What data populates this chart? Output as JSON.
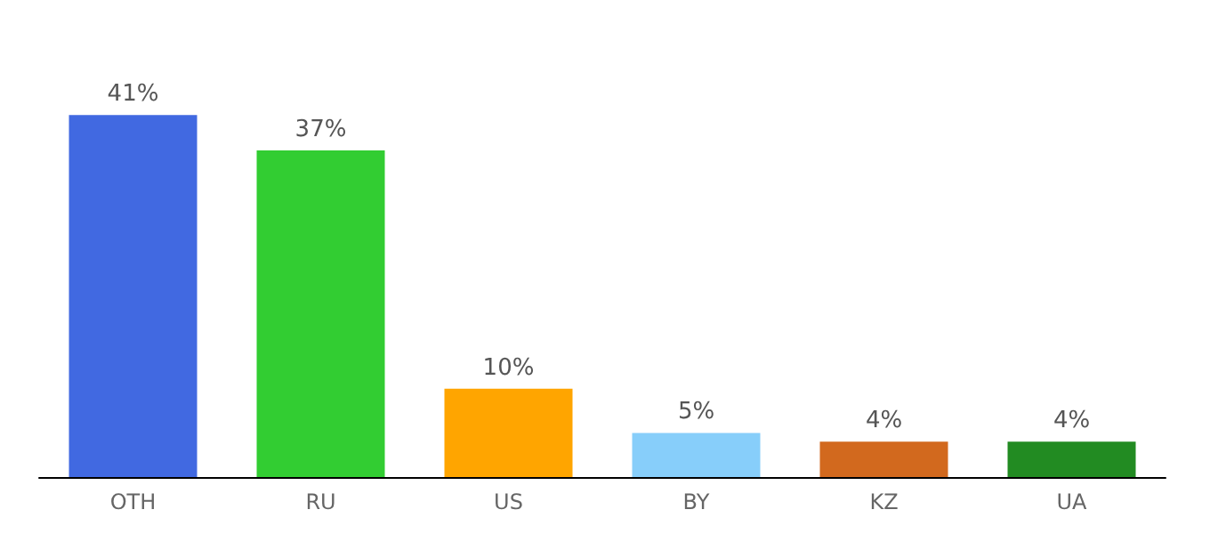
{
  "chart_data": {
    "type": "bar",
    "categories": [
      "OTH",
      "RU",
      "US",
      "BY",
      "KZ",
      "UA"
    ],
    "values": [
      41,
      37,
      10,
      5,
      4,
      4
    ],
    "value_labels": [
      "41%",
      "37%",
      "10%",
      "5%",
      "4%",
      "4%"
    ],
    "colors": [
      "#4169e1",
      "#32cd32",
      "#ffa500",
      "#87cefa",
      "#d2691e",
      "#228b22"
    ]
  }
}
